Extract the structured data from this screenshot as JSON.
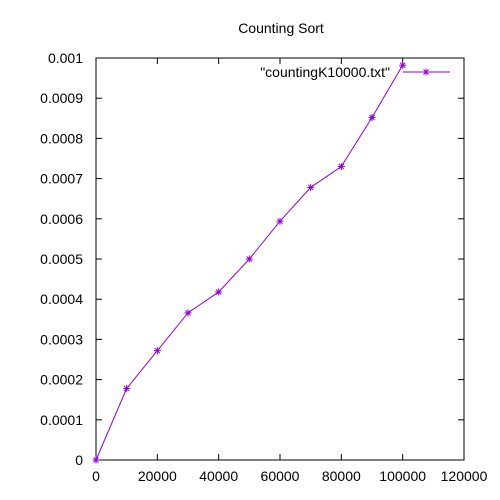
{
  "chart_data": {
    "type": "line",
    "title": "Counting Sort",
    "xlabel": "",
    "ylabel": "",
    "xlim": [
      0,
      120000
    ],
    "ylim": [
      0,
      0.001
    ],
    "x_ticks": [
      0,
      20000,
      40000,
      60000,
      80000,
      100000,
      120000
    ],
    "y_ticks": [
      0,
      0.0001,
      0.0002,
      0.0003,
      0.0004,
      0.0005,
      0.0006,
      0.0007,
      0.0008,
      0.0009,
      0.001
    ],
    "x_tick_labels": [
      "0",
      "20000",
      "40000",
      "60000",
      "80000",
      "100000",
      "120000"
    ],
    "y_tick_labels": [
      "0",
      "0.0001",
      "0.0002",
      "0.0003",
      "0.0004",
      "0.0005",
      "0.0006",
      "0.0007",
      "0.0008",
      "0.0009",
      "0.001"
    ],
    "grid": false,
    "legend_position": "top-right",
    "series": [
      {
        "name": "\"countingK10000.txt\"",
        "color": "#9400d3",
        "marker": "plus",
        "x": [
          0,
          10000,
          20000,
          30000,
          40000,
          50000,
          60000,
          70000,
          80000,
          90000,
          100000
        ],
        "y": [
          0,
          0.000178,
          0.000272,
          0.000366,
          0.000418,
          0.0005,
          0.000594,
          0.000678,
          0.00073,
          0.000852,
          0.000982
        ]
      }
    ]
  }
}
